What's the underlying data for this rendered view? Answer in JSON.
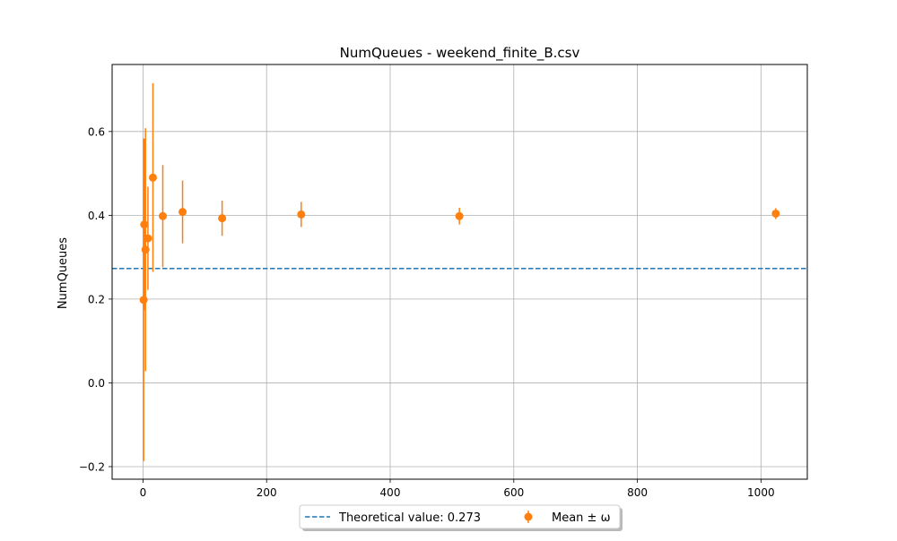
{
  "chart_data": {
    "type": "scatter",
    "title": "NumQueues - weekend_finite_B.csv",
    "xlabel": "",
    "ylabel": "NumQueues",
    "xlim": [
      -50,
      1075
    ],
    "ylim": [
      -0.23,
      0.76
    ],
    "x_ticks": [
      0,
      200,
      400,
      600,
      800,
      1000
    ],
    "x_tick_labels": [
      "0",
      "200",
      "400",
      "600",
      "800",
      "1000"
    ],
    "y_ticks": [
      -0.2,
      0.0,
      0.2,
      0.4,
      0.6
    ],
    "y_tick_labels": [
      "−0.2",
      "0.0",
      "0.2",
      "0.4",
      "0.6"
    ],
    "grid": true,
    "legend_placement": "bottom-center",
    "reference_line": {
      "label": "Theoretical value: 0.273",
      "value": 0.273,
      "style": "dashed",
      "color": "#1f77b4"
    },
    "series": [
      {
        "name": "Mean ± ω",
        "color": "#ff7f0e",
        "points": [
          {
            "x": 1,
            "y": 0.198,
            "err": 0.385
          },
          {
            "x": 2,
            "y": 0.378,
            "err": 0.205
          },
          {
            "x": 4,
            "y": 0.318,
            "err": 0.29
          },
          {
            "x": 8,
            "y": 0.345,
            "err": 0.123
          },
          {
            "x": 16,
            "y": 0.49,
            "err": 0.225
          },
          {
            "x": 32,
            "y": 0.398,
            "err": 0.122
          },
          {
            "x": 64,
            "y": 0.408,
            "err": 0.075
          },
          {
            "x": 128,
            "y": 0.393,
            "err": 0.042
          },
          {
            "x": 256,
            "y": 0.402,
            "err": 0.03
          },
          {
            "x": 512,
            "y": 0.398,
            "err": 0.02
          },
          {
            "x": 1024,
            "y": 0.404,
            "err": 0.013
          }
        ]
      }
    ]
  }
}
